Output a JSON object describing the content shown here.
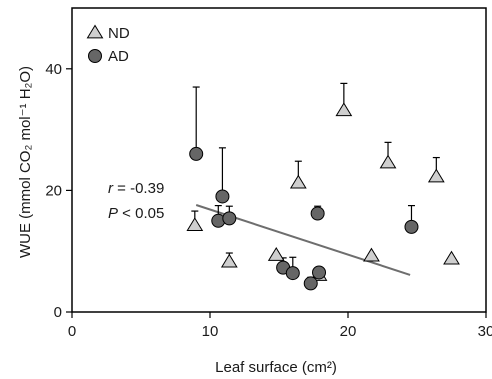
{
  "chart_data": {
    "type": "scatter",
    "xlabel": "Leaf surface (cm²)",
    "ylabel": "WUE (mmol CO₂ mol⁻¹ H₂O)",
    "xlim": [
      0,
      30
    ],
    "ylim": [
      0,
      50
    ],
    "xticks": [
      0,
      10,
      20,
      30
    ],
    "yticks": [
      0,
      20,
      40
    ],
    "grid": false,
    "legend_position": "top-left",
    "series": [
      {
        "name": "ND",
        "marker": "triangle",
        "color": "#cfcfcf",
        "points": [
          {
            "x": 8.9,
            "y": 14.2,
            "err": 2.4
          },
          {
            "x": 11.4,
            "y": 8.2,
            "err": 1.5
          },
          {
            "x": 14.8,
            "y": 9.3,
            "err": 0
          },
          {
            "x": 16.4,
            "y": 21.2,
            "err": 3.6
          },
          {
            "x": 17.9,
            "y": 6.0,
            "err": 0
          },
          {
            "x": 19.7,
            "y": 33.1,
            "err": 4.5
          },
          {
            "x": 21.7,
            "y": 9.2,
            "err": 0
          },
          {
            "x": 22.9,
            "y": 24.5,
            "err": 3.4
          },
          {
            "x": 26.4,
            "y": 22.2,
            "err": 3.2
          },
          {
            "x": 27.5,
            "y": 8.7,
            "err": 0
          }
        ]
      },
      {
        "name": "AD",
        "marker": "circle",
        "color": "#666666",
        "points": [
          {
            "x": 9.0,
            "y": 26.0,
            "err": 11.0
          },
          {
            "x": 10.6,
            "y": 15.0,
            "err": 2.5
          },
          {
            "x": 10.9,
            "y": 19.0,
            "err": 8.0
          },
          {
            "x": 11.4,
            "y": 15.4,
            "err": 2.0
          },
          {
            "x": 15.3,
            "y": 7.3,
            "err": 1.6
          },
          {
            "x": 16.0,
            "y": 6.4,
            "err": 2.6
          },
          {
            "x": 17.3,
            "y": 4.7,
            "err": 1.0
          },
          {
            "x": 17.8,
            "y": 16.2,
            "err": 1.2
          },
          {
            "x": 17.9,
            "y": 6.5,
            "err": 0
          },
          {
            "x": 24.6,
            "y": 14.0,
            "err": 3.5
          }
        ]
      }
    ],
    "regression": {
      "x1": 9.0,
      "y1": 17.6,
      "x2": 24.5,
      "y2": 6.1,
      "color": "#6e6e6e"
    },
    "annotations": {
      "r_label": "r",
      "r_value": " = -0.39",
      "p_label": "P",
      "p_value": " < 0.05"
    }
  }
}
